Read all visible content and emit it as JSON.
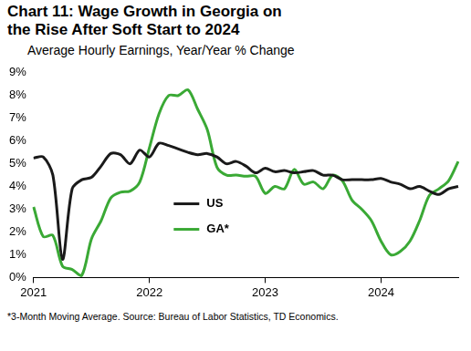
{
  "chart_data": {
    "type": "line",
    "title": "Chart 11: Wage Growth in Georgia on the Rise After Soft Start to 2024",
    "subtitle": "Average Hourly Earnings, Year/Year % Change",
    "note": "*3-Month Moving Average.  Source: Bureau of Labor Statistics, TD Economics.",
    "categories": [
      "2021",
      null,
      null,
      null,
      null,
      null,
      null,
      null,
      null,
      null,
      null,
      null,
      "2022",
      null,
      null,
      null,
      null,
      null,
      null,
      null,
      null,
      null,
      null,
      null,
      "2023",
      null,
      null,
      null,
      null,
      null,
      null,
      null,
      null,
      null,
      null,
      null,
      "2024",
      null,
      null,
      null,
      null,
      null,
      null,
      null,
      null
    ],
    "series": [
      {
        "name": "US",
        "color": "#1a1a1a",
        "values": [
          5.25,
          5.3,
          4.5,
          0.8,
          3.9,
          4.3,
          4.4,
          4.9,
          5.45,
          5.4,
          5.0,
          5.6,
          5.3,
          5.9,
          5.8,
          5.65,
          5.5,
          5.4,
          5.45,
          5.3,
          5.0,
          5.1,
          4.9,
          4.6,
          4.8,
          4.65,
          4.7,
          4.6,
          4.65,
          4.7,
          4.5,
          4.5,
          4.3,
          4.3,
          4.3,
          4.3,
          4.35,
          4.2,
          4.1,
          3.9,
          4.0,
          3.8,
          3.65,
          3.9,
          4.0
        ]
      },
      {
        "name": "GA*",
        "color": "#3aa935",
        "values": [
          3.1,
          1.8,
          1.85,
          0.5,
          0.35,
          0.1,
          1.7,
          2.5,
          3.5,
          3.75,
          3.8,
          4.2,
          5.7,
          7.2,
          8.0,
          8.0,
          8.25,
          7.4,
          6.5,
          4.85,
          4.5,
          4.5,
          4.45,
          4.45,
          3.7,
          4.0,
          3.9,
          4.75,
          4.1,
          4.2,
          3.9,
          4.5,
          4.25,
          3.4,
          3.0,
          2.5,
          1.6,
          1.0,
          1.15,
          1.6,
          2.5,
          3.6,
          3.9,
          4.25,
          5.1
        ]
      }
    ],
    "ylim": [
      0,
      9
    ],
    "yticks": [
      {
        "value": 0,
        "label": "0%"
      },
      {
        "value": 1,
        "label": "1%"
      },
      {
        "value": 2,
        "label": "2%"
      },
      {
        "value": 3,
        "label": "3%"
      },
      {
        "value": 4,
        "label": "4%"
      },
      {
        "value": 5,
        "label": "5%"
      },
      {
        "value": 6,
        "label": "6%"
      },
      {
        "value": 7,
        "label": "7%"
      },
      {
        "value": 8,
        "label": "8%"
      },
      {
        "value": 9,
        "label": "9%"
      }
    ],
    "grid": false,
    "legend": "left"
  }
}
